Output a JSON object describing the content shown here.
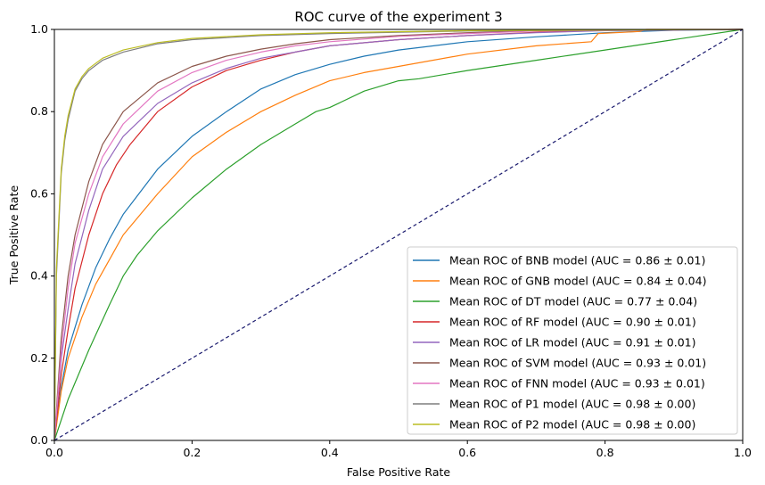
{
  "chart_data": {
    "type": "line",
    "title": "ROC curve of the experiment 3",
    "xlabel": "False Positive Rate",
    "ylabel": "True Positive Rate",
    "xlim": [
      0,
      1
    ],
    "ylim": [
      0,
      1
    ],
    "xticks": [
      "0.0",
      "0.2",
      "0.4",
      "0.6",
      "0.8",
      "1.0"
    ],
    "yticks": [
      "0.0",
      "0.2",
      "0.4",
      "0.6",
      "0.8",
      "1.0"
    ],
    "grid": false,
    "legend_position": "lower right",
    "diagonal": {
      "x": [
        0,
        1
      ],
      "y": [
        0,
        1
      ],
      "color": "#1a1a6e",
      "style": "dashed"
    },
    "series": [
      {
        "name": "Mean ROC of BNB model (AUC = 0.86 ± 0.01)",
        "color": "#1f77b4",
        "x": [
          0,
          0.01,
          0.02,
          0.04,
          0.06,
          0.08,
          0.1,
          0.15,
          0.2,
          0.25,
          0.3,
          0.35,
          0.4,
          0.45,
          0.5,
          0.6,
          0.7,
          0.8,
          0.9,
          1.0
        ],
        "y": [
          0,
          0.13,
          0.22,
          0.33,
          0.42,
          0.49,
          0.55,
          0.66,
          0.74,
          0.8,
          0.855,
          0.89,
          0.915,
          0.935,
          0.95,
          0.97,
          0.982,
          0.992,
          0.998,
          1.0
        ]
      },
      {
        "name": "Mean ROC of GNB model (AUC = 0.84 ± 0.04)",
        "color": "#ff7f0e",
        "x": [
          0,
          0.01,
          0.02,
          0.04,
          0.06,
          0.08,
          0.1,
          0.15,
          0.2,
          0.25,
          0.3,
          0.35,
          0.4,
          0.45,
          0.5,
          0.6,
          0.7,
          0.78,
          0.79,
          0.85,
          0.86,
          1.0
        ],
        "y": [
          0,
          0.12,
          0.2,
          0.3,
          0.38,
          0.44,
          0.5,
          0.6,
          0.69,
          0.75,
          0.8,
          0.84,
          0.875,
          0.895,
          0.91,
          0.94,
          0.96,
          0.97,
          0.99,
          0.995,
          1.0,
          1.0
        ]
      },
      {
        "name": "Mean ROC of DT model (AUC = 0.77 ± 0.04)",
        "color": "#2ca02c",
        "x": [
          0,
          0.02,
          0.05,
          0.08,
          0.1,
          0.12,
          0.15,
          0.2,
          0.25,
          0.3,
          0.35,
          0.38,
          0.4,
          0.45,
          0.5,
          0.53,
          0.6,
          0.7,
          0.8,
          0.9,
          1.0
        ],
        "y": [
          0,
          0.1,
          0.22,
          0.33,
          0.4,
          0.45,
          0.51,
          0.59,
          0.66,
          0.72,
          0.77,
          0.8,
          0.81,
          0.85,
          0.875,
          0.88,
          0.9,
          0.925,
          0.95,
          0.975,
          1.0
        ]
      },
      {
        "name": "Mean ROC of RF model (AUC = 0.90 ± 0.01)",
        "color": "#d62728",
        "x": [
          0,
          0.01,
          0.02,
          0.03,
          0.05,
          0.07,
          0.09,
          0.11,
          0.15,
          0.2,
          0.25,
          0.3,
          0.35,
          0.4,
          0.5,
          0.6,
          0.7,
          0.8,
          1.0
        ],
        "y": [
          0,
          0.16,
          0.27,
          0.37,
          0.5,
          0.6,
          0.67,
          0.72,
          0.8,
          0.86,
          0.9,
          0.925,
          0.945,
          0.96,
          0.975,
          0.985,
          0.993,
          0.998,
          1.0
        ]
      },
      {
        "name": "Mean ROC of LR model (AUC = 0.91 ± 0.01)",
        "color": "#9467bd",
        "x": [
          0,
          0.01,
          0.02,
          0.03,
          0.05,
          0.07,
          0.1,
          0.15,
          0.2,
          0.25,
          0.3,
          0.35,
          0.4,
          0.5,
          0.6,
          0.7,
          0.8,
          1.0
        ],
        "y": [
          0,
          0.2,
          0.32,
          0.43,
          0.56,
          0.66,
          0.74,
          0.82,
          0.87,
          0.905,
          0.93,
          0.945,
          0.96,
          0.975,
          0.985,
          0.992,
          0.997,
          1.0
        ]
      },
      {
        "name": "Mean ROC of SVM model (AUC = 0.93 ± 0.01)",
        "color": "#8c564b",
        "x": [
          0,
          0.01,
          0.02,
          0.03,
          0.05,
          0.07,
          0.1,
          0.15,
          0.2,
          0.25,
          0.3,
          0.35,
          0.4,
          0.5,
          0.6,
          0.7,
          1.0
        ],
        "y": [
          0,
          0.25,
          0.4,
          0.5,
          0.63,
          0.72,
          0.8,
          0.87,
          0.91,
          0.935,
          0.952,
          0.965,
          0.975,
          0.985,
          0.992,
          0.997,
          1.0
        ]
      },
      {
        "name": "Mean ROC of FNN model (AUC = 0.93 ± 0.01)",
        "color": "#e377c2",
        "x": [
          0,
          0.01,
          0.02,
          0.03,
          0.05,
          0.07,
          0.1,
          0.15,
          0.2,
          0.25,
          0.3,
          0.35,
          0.4,
          0.5,
          0.6,
          0.7,
          1.0
        ],
        "y": [
          0,
          0.22,
          0.37,
          0.48,
          0.6,
          0.69,
          0.77,
          0.85,
          0.895,
          0.925,
          0.945,
          0.96,
          0.97,
          0.983,
          0.99,
          0.996,
          1.0
        ]
      },
      {
        "name": "Mean ROC of P1 model (AUC = 0.98 ± 0.00)",
        "color": "#7f7f7f",
        "x": [
          0,
          0.003,
          0.01,
          0.015,
          0.02,
          0.03,
          0.04,
          0.05,
          0.07,
          0.1,
          0.15,
          0.2,
          0.3,
          0.4,
          0.6,
          1.0
        ],
        "y": [
          0,
          0.4,
          0.65,
          0.73,
          0.78,
          0.85,
          0.88,
          0.9,
          0.925,
          0.945,
          0.965,
          0.975,
          0.985,
          0.99,
          0.996,
          1.0
        ]
      },
      {
        "name": "Mean ROC of P2 model (AUC = 0.98 ± 0.00)",
        "color": "#bcbd22",
        "x": [
          0,
          0.003,
          0.01,
          0.015,
          0.02,
          0.03,
          0.04,
          0.05,
          0.07,
          0.1,
          0.15,
          0.2,
          0.3,
          0.4,
          0.6,
          1.0
        ],
        "y": [
          0,
          0.42,
          0.66,
          0.74,
          0.79,
          0.855,
          0.885,
          0.905,
          0.93,
          0.95,
          0.968,
          0.978,
          0.987,
          0.992,
          0.997,
          1.0
        ]
      }
    ]
  }
}
